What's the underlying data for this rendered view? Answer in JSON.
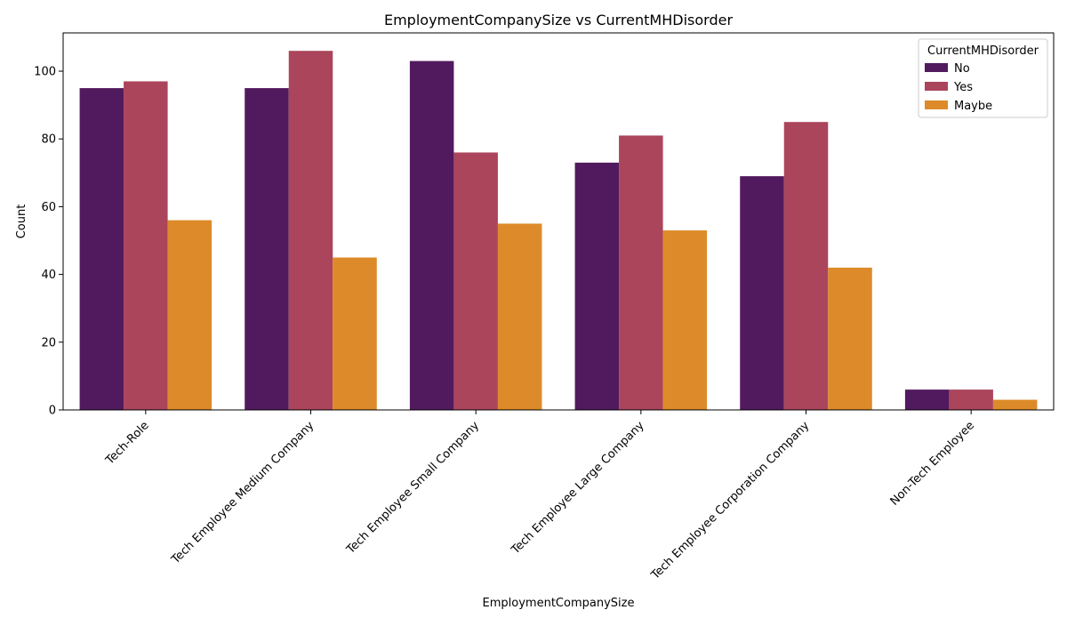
{
  "chart_data": {
    "type": "bar",
    "title": "EmploymentCompanySize vs CurrentMHDisorder",
    "xlabel": "EmploymentCompanySize",
    "ylabel": "Count",
    "categories": [
      "Tech-Role",
      "Tech Employee Medium Company",
      "Tech Employee Small Company",
      "Tech Employee Large Company",
      "Tech Employee Corporation Company",
      "Non-Tech Employee"
    ],
    "series": [
      {
        "name": "No",
        "color": "#521a5e",
        "values": [
          95,
          95,
          103,
          73,
          69,
          6
        ]
      },
      {
        "name": "Yes",
        "color": "#ab455c",
        "values": [
          97,
          106,
          76,
          81,
          85,
          6
        ]
      },
      {
        "name": "Maybe",
        "color": "#dd8b2a",
        "values": [
          56,
          45,
          55,
          53,
          42,
          3
        ]
      }
    ],
    "ylim": [
      0,
      111.3
    ],
    "yticks": [
      0,
      20,
      40,
      60,
      80,
      100
    ],
    "grid": false,
    "legend": {
      "title": "CurrentMHDisorder",
      "placement": "top-right"
    }
  }
}
